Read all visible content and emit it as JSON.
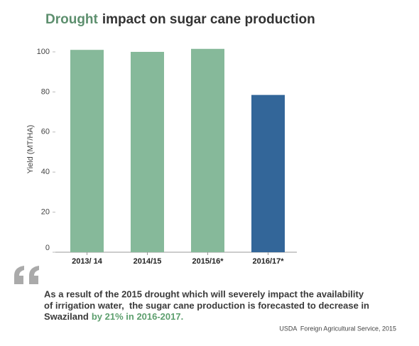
{
  "chart_data": {
    "type": "bar",
    "title": {
      "highlight": "Drought",
      "rest": "impact on sugar cane production"
    },
    "y_label": "Yield (MT/HA)",
    "categories": [
      "2013/ 14",
      "2014/15",
      "2015/16*",
      "2016/17*"
    ],
    "values": [
      101,
      100,
      101.5,
      78.5
    ],
    "colors": [
      "#86b99a",
      "#86b99a",
      "#86b99a",
      "#336699"
    ],
    "ylim": [
      0,
      100
    ],
    "yticks": [
      0,
      20,
      40,
      60,
      80,
      100
    ],
    "grid": false
  },
  "quote": {
    "lines": [
      "As a result of the 2015 drought which will severely impact the availability",
      "of irrigation water,  the sugar cane production is forecasted to decrease in",
      "Swaziland"
    ],
    "highlight": "by 21% in 2016-2017."
  },
  "source": "USDA  Foreign Agricultural Service, 2015"
}
